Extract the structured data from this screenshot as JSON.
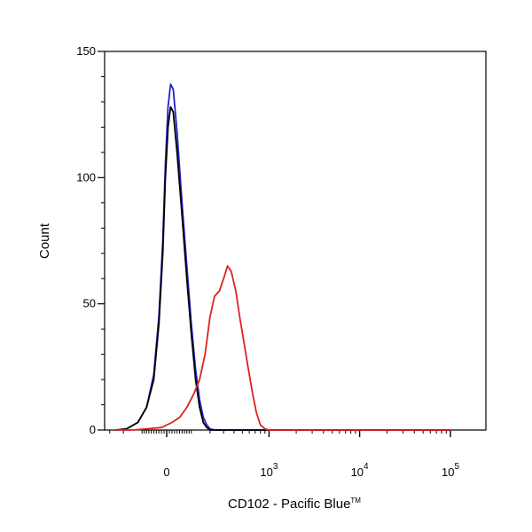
{
  "chart_data": {
    "type": "line",
    "xlabel": "CD102 - Pacific Blue",
    "xlabel_trademark": "TM",
    "ylabel": "Count",
    "x_scale": "biexponential",
    "x_ticks": [
      {
        "value": 0,
        "label": "0"
      },
      {
        "value": 1000,
        "base": "10",
        "exp": "3"
      },
      {
        "value": 10000,
        "base": "10",
        "exp": "4"
      },
      {
        "value": 100000,
        "base": "10",
        "exp": "5"
      }
    ],
    "y_ticks": [
      0,
      50,
      100,
      150
    ],
    "ylim": [
      0,
      150
    ],
    "grid": false,
    "series": [
      {
        "color": "#2222cc",
        "values": [
          [
            -250,
            0
          ],
          [
            -180,
            0.5
          ],
          [
            -120,
            3
          ],
          [
            -80,
            9
          ],
          [
            -50,
            22
          ],
          [
            -30,
            45
          ],
          [
            -15,
            75
          ],
          [
            -5,
            105
          ],
          [
            5,
            128
          ],
          [
            15,
            137
          ],
          [
            25,
            135
          ],
          [
            40,
            118
          ],
          [
            60,
            90
          ],
          [
            80,
            65
          ],
          [
            100,
            42
          ],
          [
            120,
            24
          ],
          [
            140,
            12
          ],
          [
            160,
            5
          ],
          [
            180,
            2
          ],
          [
            200,
            0.5
          ],
          [
            230,
            0
          ],
          [
            100000,
            0
          ]
        ]
      },
      {
        "color": "#000000",
        "values": [
          [
            -250,
            0
          ],
          [
            -180,
            0.5
          ],
          [
            -120,
            3
          ],
          [
            -80,
            9
          ],
          [
            -50,
            20
          ],
          [
            -30,
            42
          ],
          [
            -15,
            70
          ],
          [
            -5,
            100
          ],
          [
            5,
            120
          ],
          [
            15,
            128
          ],
          [
            25,
            126
          ],
          [
            40,
            110
          ],
          [
            60,
            85
          ],
          [
            80,
            60
          ],
          [
            100,
            38
          ],
          [
            120,
            20
          ],
          [
            140,
            9
          ],
          [
            160,
            3
          ],
          [
            180,
            1
          ],
          [
            200,
            0
          ],
          [
            100000,
            0
          ]
        ]
      },
      {
        "color": "#dd2222",
        "values": [
          [
            -250,
            0
          ],
          [
            -150,
            0
          ],
          [
            -80,
            0.5
          ],
          [
            -20,
            1
          ],
          [
            20,
            3
          ],
          [
            50,
            5
          ],
          [
            80,
            9
          ],
          [
            110,
            14
          ],
          [
            140,
            20
          ],
          [
            170,
            30
          ],
          [
            200,
            45
          ],
          [
            230,
            53
          ],
          [
            265,
            55
          ],
          [
            300,
            60
          ],
          [
            335,
            65
          ],
          [
            370,
            63
          ],
          [
            420,
            55
          ],
          [
            470,
            44
          ],
          [
            520,
            35
          ],
          [
            580,
            25
          ],
          [
            650,
            15
          ],
          [
            720,
            7
          ],
          [
            800,
            2
          ],
          [
            900,
            0.5
          ],
          [
            1000,
            0
          ],
          [
            100000,
            0
          ]
        ]
      }
    ]
  }
}
